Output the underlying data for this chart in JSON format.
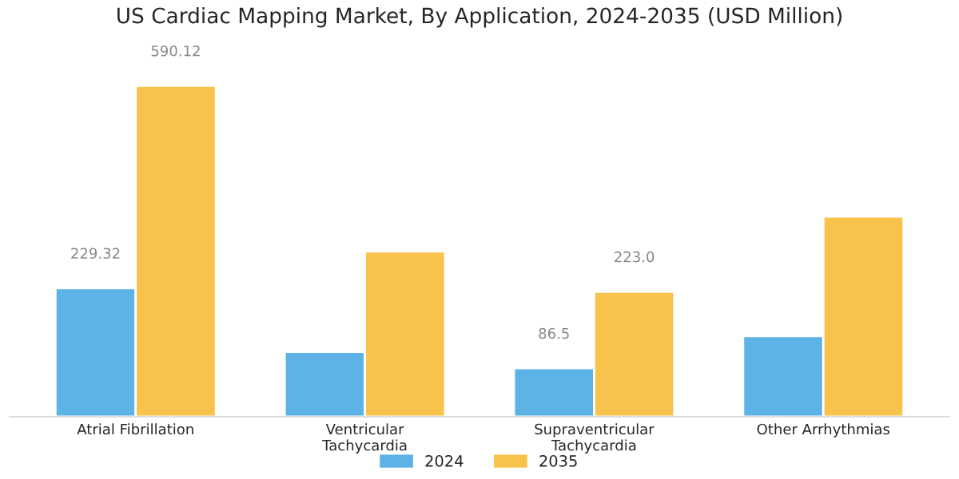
{
  "chart_data": {
    "type": "bar",
    "title": "US Cardiac Mapping Market, By Application, 2024-2035 (USD Million)",
    "categories": [
      "Atrial Fibrillation",
      "Ventricular\nTachycardia",
      "Supraventricular\nTachycardia",
      "Other Arrhythmias"
    ],
    "series": [
      {
        "name": "2024",
        "color": "#5db3e6",
        "values": [
          229.32,
          116,
          86.5,
          144
        ],
        "value_labels": [
          "229.32",
          null,
          "86.5",
          null
        ]
      },
      {
        "name": "2035",
        "color": "#f8c34c",
        "values": [
          590.12,
          295,
          223.0,
          357
        ],
        "value_labels": [
          "590.12",
          null,
          "223.0",
          null
        ]
      }
    ],
    "legend": "bottom",
    "grid": false
  }
}
